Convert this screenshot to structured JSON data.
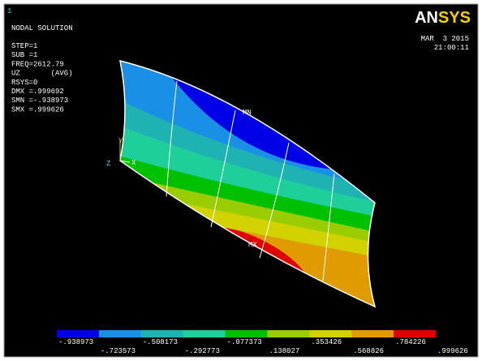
{
  "window_number": "1",
  "title": "NODAL SOLUTION",
  "info": [
    "STEP=1",
    "SUB =1",
    "FREQ=2612.79",
    "UZ       (AVG)",
    "RSYS=0",
    "DMX =.999692",
    "SMN =-.938973",
    "SMX =.999626"
  ],
  "logo": "ANSYS",
  "date": "MAR  3 2015",
  "time": "21:00:11",
  "labels": {
    "min": "MN",
    "max": "MX"
  },
  "triad": {
    "x": "X",
    "y": "Y",
    "z": "Z"
  },
  "legend": {
    "colors": [
      "#0000e6",
      "#1a8fe6",
      "#1fb2b2",
      "#1ecf9a",
      "#00c000",
      "#9acd00",
      "#d2d200",
      "#e09b00",
      "#e00000"
    ],
    "labels": [
      "-.938973",
      "-.723573",
      "-.508173",
      "-.292773",
      "-.077373",
      ".138027",
      ".353426",
      ".568826",
      ".784226",
      ".999626"
    ]
  }
}
